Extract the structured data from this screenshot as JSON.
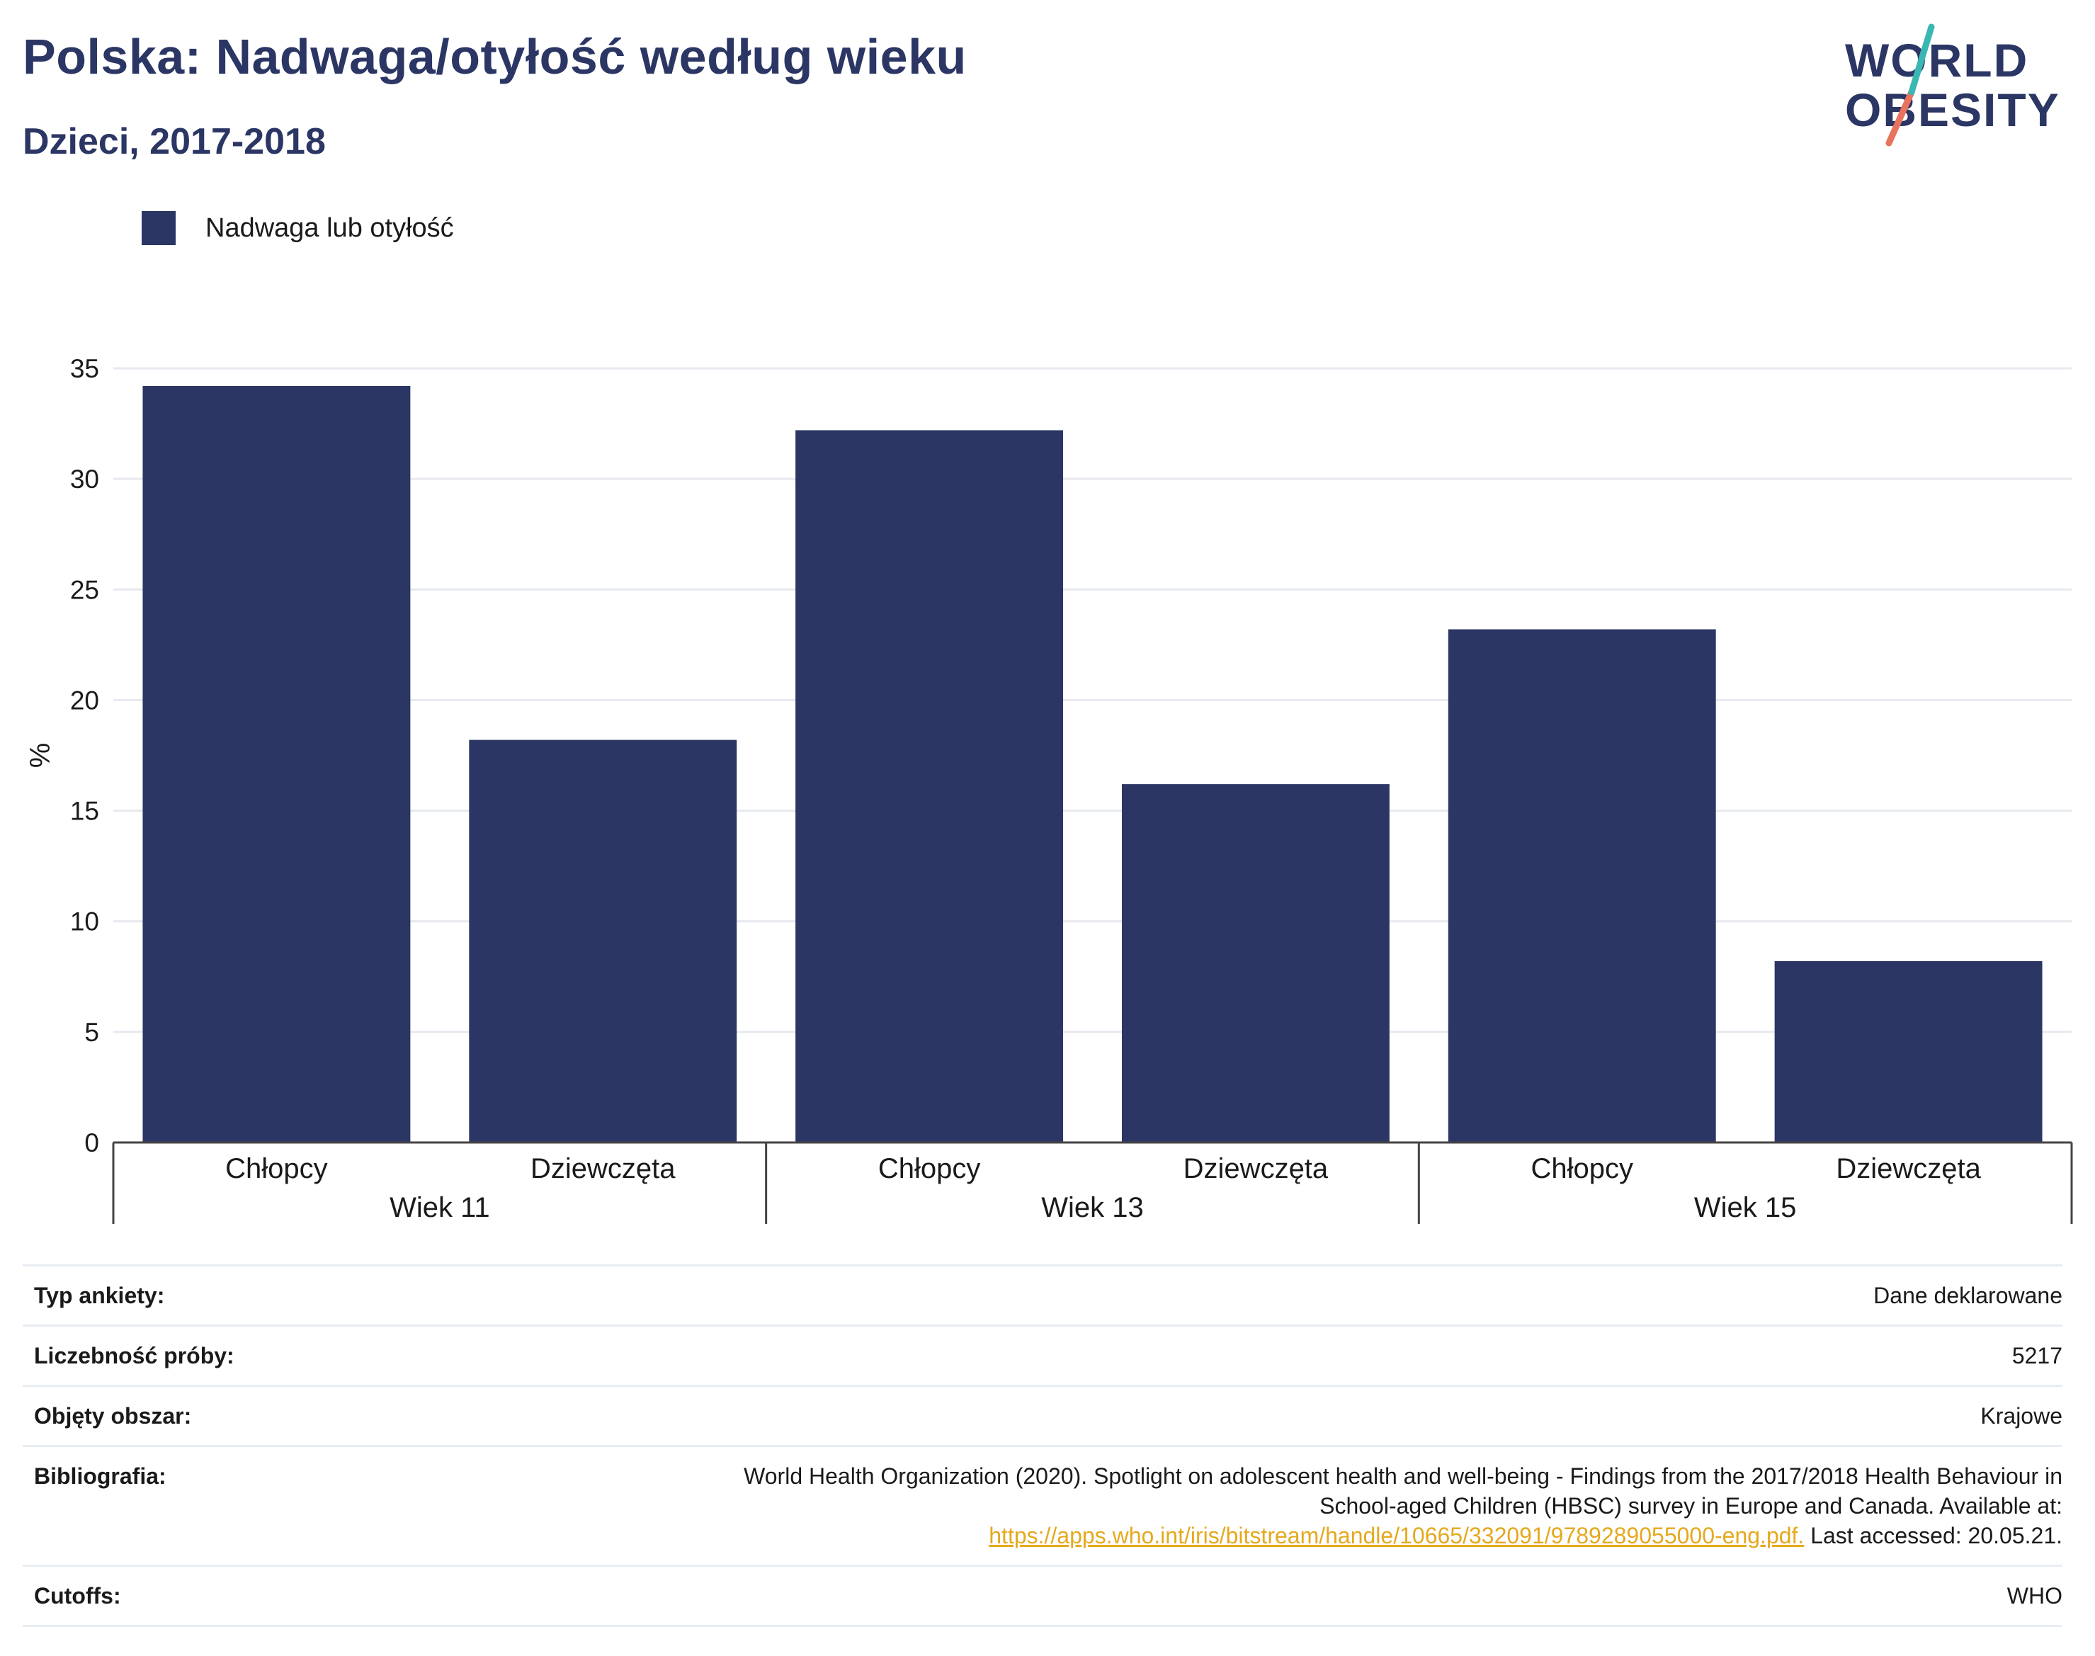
{
  "header": {
    "title": "Polska: Nadwaga/otyłość według wieku",
    "subtitle": "Dzieci, 2017-2018"
  },
  "logo": {
    "line1": "WORLD",
    "line2": "OBESITY"
  },
  "legend": {
    "label": "Nadwaga lub otyłość",
    "color": "#2b3664"
  },
  "chart_data": {
    "type": "bar",
    "ylabel": "%",
    "ylim": [
      0,
      35
    ],
    "yticks": [
      0,
      5,
      10,
      15,
      20,
      25,
      30,
      35
    ],
    "grid": true,
    "legend_position": "top-left",
    "groups": [
      {
        "label": "Wiek 11",
        "categories": [
          "Chłopcy",
          "Dziewczęta"
        ],
        "values": [
          34.2,
          18.2
        ]
      },
      {
        "label": "Wiek 13",
        "categories": [
          "Chłopcy",
          "Dziewczęta"
        ],
        "values": [
          32.2,
          16.2
        ]
      },
      {
        "label": "Wiek 15",
        "categories": [
          "Chłopcy",
          "Dziewczęta"
        ],
        "values": [
          23.2,
          8.2
        ]
      }
    ],
    "series": [
      {
        "name": "Nadwaga lub otyłość",
        "color": "#2b3664"
      }
    ]
  },
  "info": {
    "survey_type_label": "Typ ankiety:",
    "survey_type_value": "Dane deklarowane",
    "sample_label": "Liczebność próby:",
    "sample_value": "5217",
    "area_label": "Objęty obszar:",
    "area_value": "Krajowe",
    "bib_label": "Bibliografia:",
    "bib_line1": "World Health Organization (2020). Spotlight on adolescent health and well-being - Findings from the 2017/2018 Health Behaviour in",
    "bib_line2": "School-aged Children (HBSC) survey in Europe and Canada. Available at:",
    "bib_link": "https://apps.who.int/iris/bitstream/handle/10665/332091/9789289055000-eng.pdf.",
    "bib_suffix": " Last accessed: 20.05.21.",
    "cutoffs_label": "Cutoffs:",
    "cutoffs_value": "WHO"
  }
}
